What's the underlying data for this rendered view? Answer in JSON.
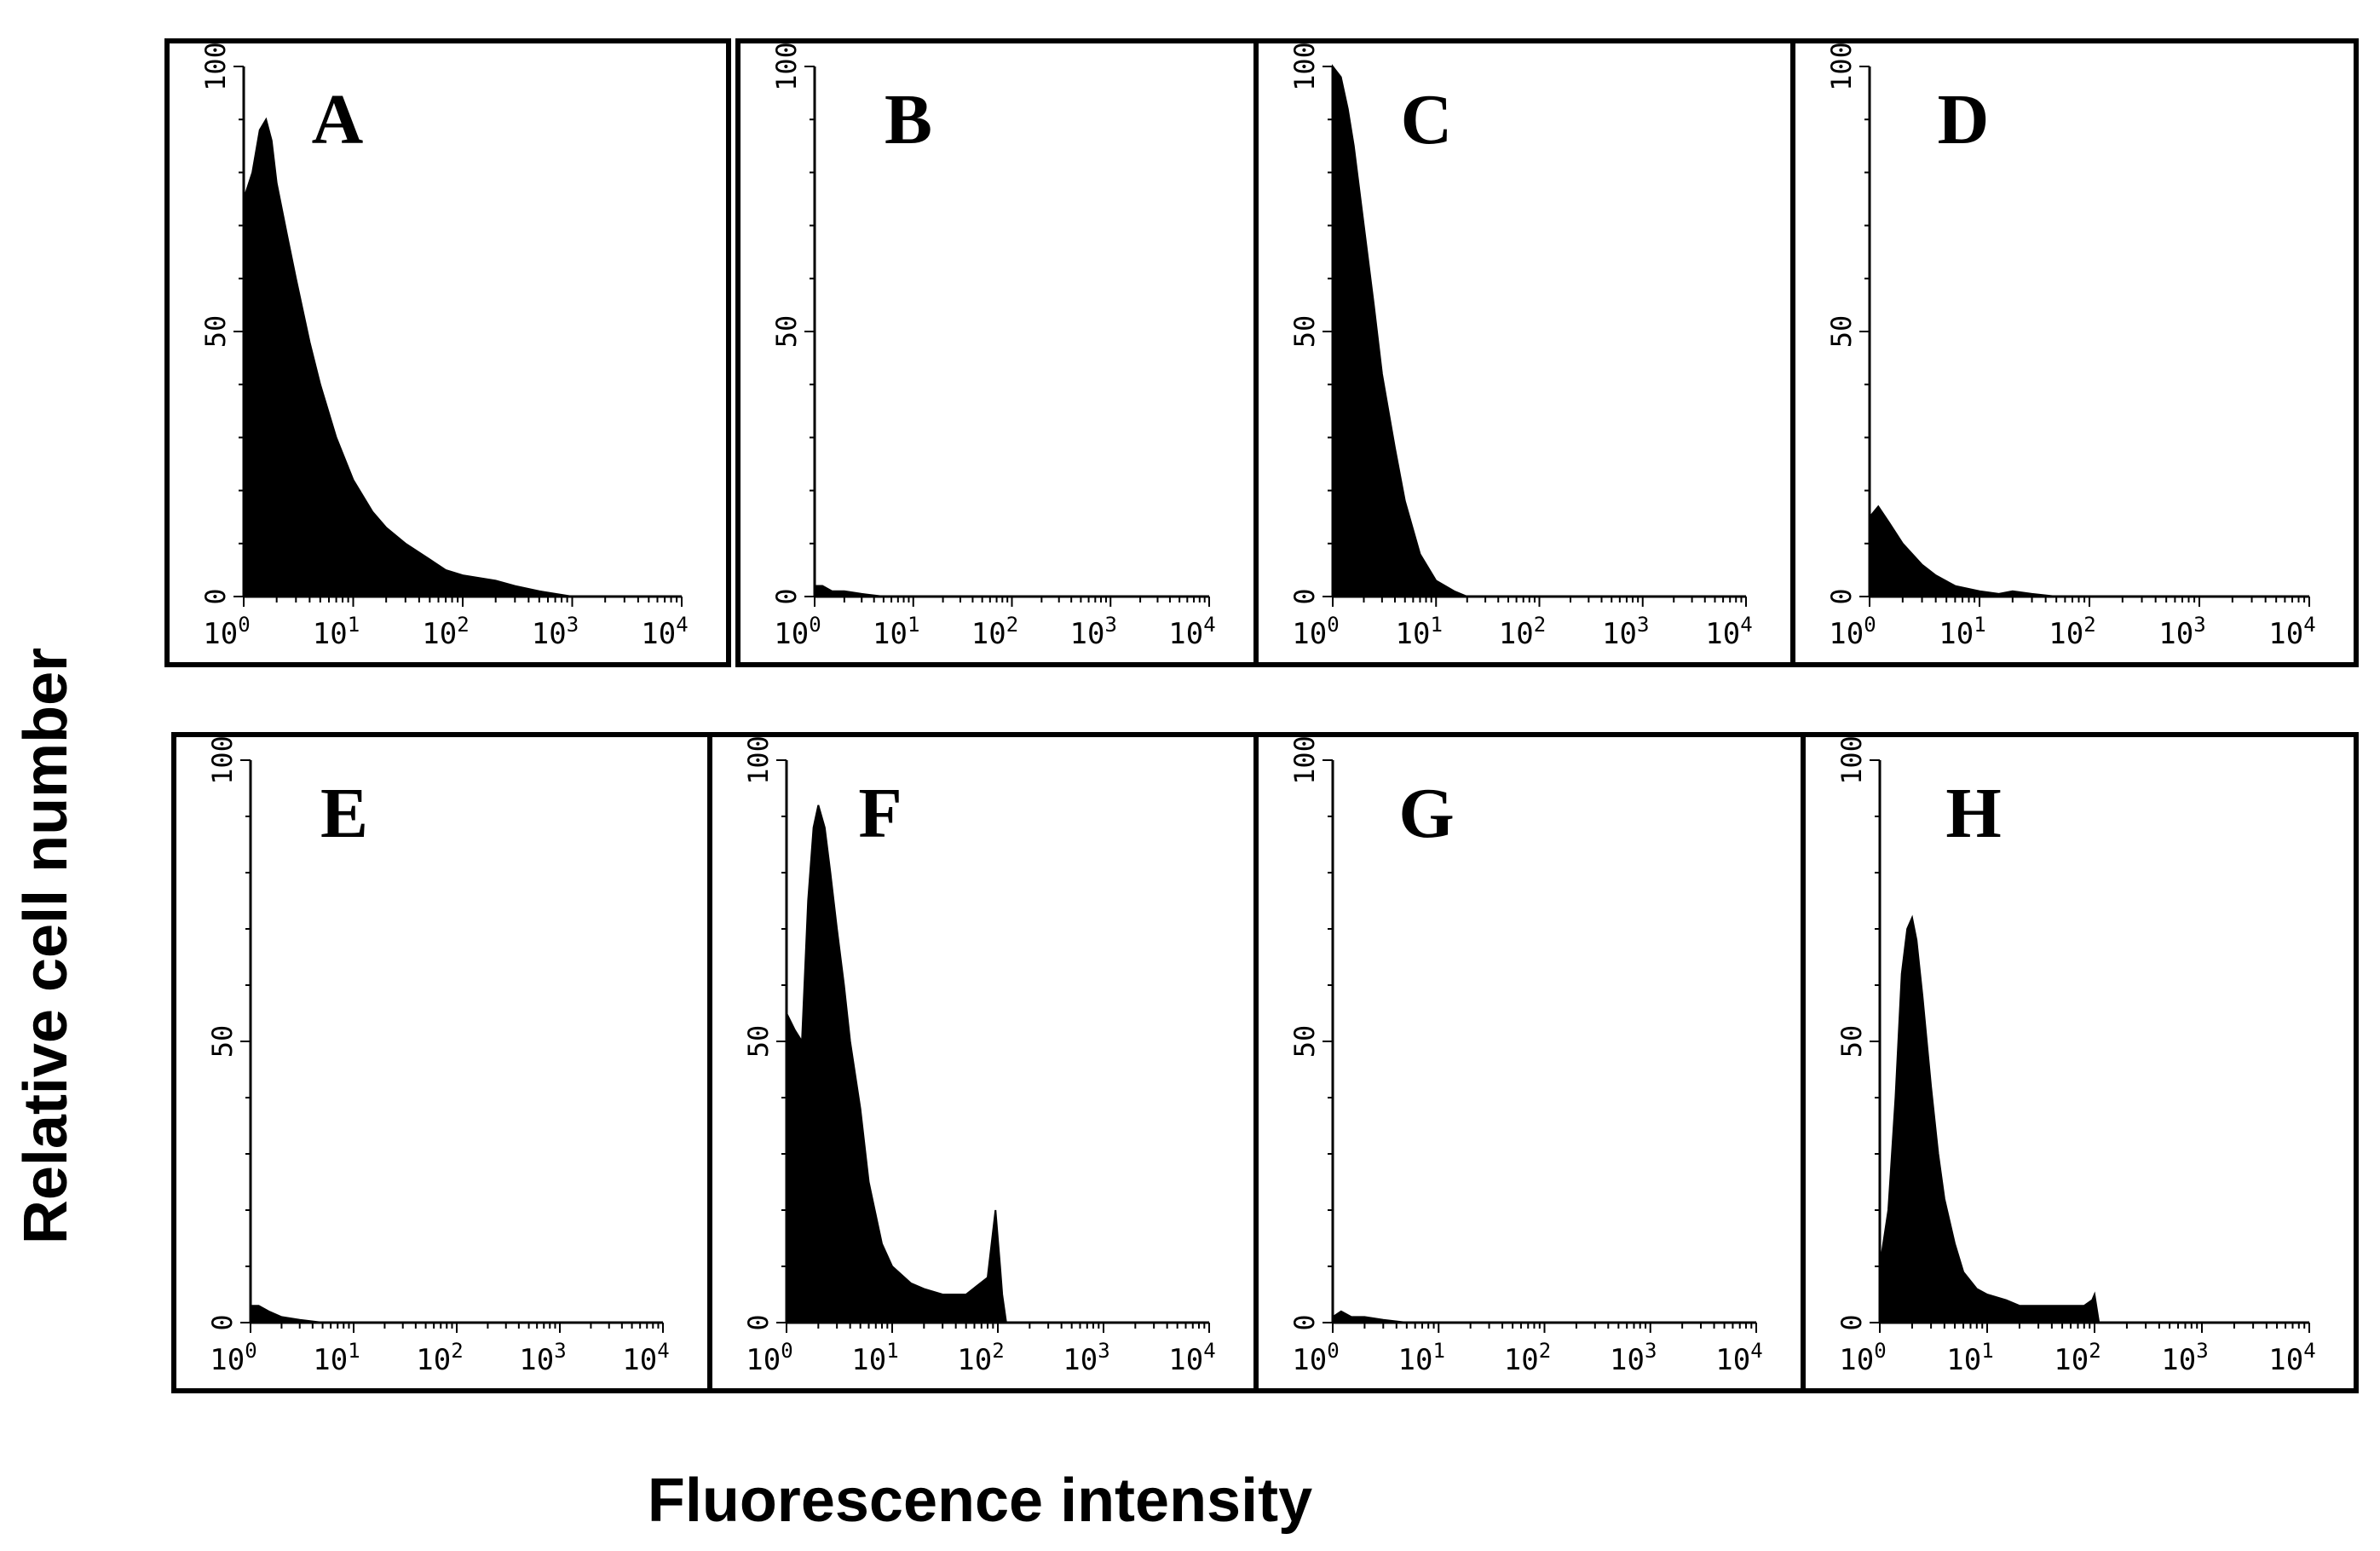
{
  "figure": {
    "ylabel": "Relative cell number",
    "xlabel": "Fluorescence intensity"
  },
  "chart_data": [
    {
      "type": "area",
      "panel": "A",
      "scale": "log",
      "xlim": [
        1,
        10000
      ],
      "ylim": [
        0,
        100
      ],
      "xticks": [
        "10^0",
        "10^1",
        "10^2",
        "10^3",
        "10^4"
      ],
      "yticks": [
        "0",
        "50",
        "100"
      ],
      "x": [
        1,
        1.2,
        1.4,
        1.6,
        1.8,
        2,
        2.5,
        3,
        4,
        5,
        7,
        10,
        15,
        20,
        30,
        50,
        70,
        100,
        200,
        300,
        500,
        1000
      ],
      "values": [
        75,
        80,
        88,
        90,
        86,
        78,
        68,
        60,
        48,
        40,
        30,
        22,
        16,
        13,
        10,
        7,
        5,
        4,
        3,
        2,
        1,
        0
      ]
    },
    {
      "type": "area",
      "panel": "B",
      "scale": "log",
      "xlim": [
        1,
        10000
      ],
      "ylim": [
        0,
        100
      ],
      "xticks": [
        "10^0",
        "10^1",
        "10^2",
        "10^3",
        "10^4"
      ],
      "yticks": [
        "0",
        "50",
        "100"
      ],
      "x": [
        1,
        1.2,
        1.5,
        2,
        3,
        5
      ],
      "values": [
        2,
        2,
        1,
        1,
        0.5,
        0
      ]
    },
    {
      "type": "area",
      "panel": "C",
      "scale": "log",
      "xlim": [
        1,
        10000
      ],
      "ylim": [
        0,
        100
      ],
      "xticks": [
        "10^0",
        "10^1",
        "10^2",
        "10^3",
        "10^4"
      ],
      "yticks": [
        "0",
        "50",
        "100"
      ],
      "x": [
        1,
        1.2,
        1.4,
        1.6,
        2,
        2.5,
        3,
        4,
        5,
        7,
        10,
        15,
        20
      ],
      "values": [
        100,
        98,
        92,
        85,
        70,
        55,
        42,
        28,
        18,
        8,
        3,
        1,
        0
      ]
    },
    {
      "type": "area",
      "panel": "D",
      "scale": "log",
      "xlim": [
        1,
        10000
      ],
      "ylim": [
        0,
        100
      ],
      "xticks": [
        "10^0",
        "10^1",
        "10^2",
        "10^3",
        "10^4"
      ],
      "yticks": [
        "0",
        "50",
        "100"
      ],
      "x": [
        1,
        1.2,
        1.5,
        2,
        3,
        4,
        6,
        10,
        15,
        20,
        30,
        50
      ],
      "values": [
        15,
        17,
        14,
        10,
        6,
        4,
        2,
        1,
        0.5,
        1,
        0.5,
        0
      ]
    },
    {
      "type": "area",
      "panel": "E",
      "scale": "log",
      "xlim": [
        1,
        10000
      ],
      "ylim": [
        0,
        100
      ],
      "xticks": [
        "10^0",
        "10^1",
        "10^2",
        "10^3",
        "10^4"
      ],
      "yticks": [
        "0",
        "50",
        "100"
      ],
      "x": [
        1,
        1.2,
        1.5,
        2,
        3,
        5
      ],
      "values": [
        3,
        3,
        2,
        1,
        0.5,
        0
      ]
    },
    {
      "type": "area",
      "panel": "F",
      "scale": "log",
      "xlim": [
        1,
        10000
      ],
      "ylim": [
        0,
        100
      ],
      "xticks": [
        "10^0",
        "10^1",
        "10^2",
        "10^3",
        "10^4"
      ],
      "yticks": [
        "0",
        "50",
        "100"
      ],
      "x": [
        1,
        1.2,
        1.4,
        1.6,
        1.8,
        2,
        2.3,
        2.6,
        3,
        3.5,
        4,
        5,
        6,
        8,
        10,
        15,
        20,
        30,
        50,
        80,
        95,
        105,
        110,
        120
      ],
      "values": [
        55,
        52,
        50,
        75,
        88,
        92,
        88,
        80,
        70,
        60,
        50,
        38,
        25,
        14,
        10,
        7,
        6,
        5,
        5,
        8,
        20,
        10,
        5,
        0
      ]
    },
    {
      "type": "area",
      "panel": "G",
      "scale": "log",
      "xlim": [
        1,
        10000
      ],
      "ylim": [
        0,
        100
      ],
      "xticks": [
        "10^0",
        "10^1",
        "10^2",
        "10^3",
        "10^4"
      ],
      "yticks": [
        "0",
        "50",
        "100"
      ],
      "x": [
        1,
        1.2,
        1.5,
        2,
        3,
        5
      ],
      "values": [
        1,
        2,
        1,
        1,
        0.5,
        0
      ]
    },
    {
      "type": "area",
      "panel": "H",
      "scale": "log",
      "xlim": [
        1,
        10000
      ],
      "ylim": [
        0,
        100
      ],
      "xticks": [
        "10^0",
        "10^1",
        "10^2",
        "10^3",
        "10^4"
      ],
      "yticks": [
        "0",
        "50",
        "100"
      ],
      "x": [
        1,
        1.2,
        1.4,
        1.6,
        1.8,
        2,
        2.2,
        2.5,
        3,
        3.5,
        4,
        5,
        6,
        8,
        10,
        15,
        20,
        40,
        60,
        80,
        95,
        100,
        110
      ],
      "values": [
        10,
        20,
        40,
        62,
        70,
        72,
        68,
        58,
        42,
        30,
        22,
        14,
        9,
        6,
        5,
        4,
        3,
        3,
        3,
        3,
        4,
        5,
        0
      ]
    }
  ]
}
